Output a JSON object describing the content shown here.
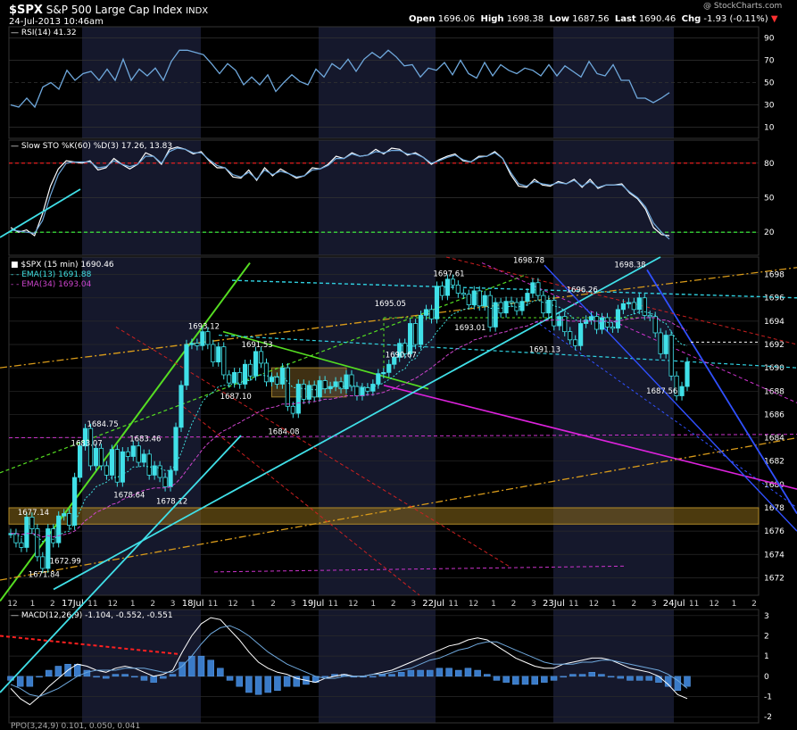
{
  "header": {
    "symbol": "$SPX",
    "name": "S&P 500 Large Cap Index",
    "exchange": "INDX",
    "timestamp": "24-Jul-2013 10:46am",
    "open_label": "Open",
    "open": "1696.06",
    "high_label": "High",
    "high": "1698.38",
    "low_label": "Low",
    "low": "1687.56",
    "last_label": "Last",
    "last": "1690.46",
    "chg_label": "Chg",
    "chg": "-1.93 (-0.11%)",
    "watermark": "@ StockCharts.com"
  },
  "colors": {
    "background": "#000000",
    "band": "#15182c",
    "up": "#40e0e8",
    "rsi_line": "#6fa8dc",
    "sto_line": "#ffffff",
    "red_dash": "#ff2020",
    "green_dash": "#40ff40",
    "ema13": "#40e0e0",
    "ema34": "#cc44cc",
    "macd_hist": "#3a7bc8"
  },
  "chart_data": [
    {
      "type": "line",
      "panel": "rsi",
      "title": "RSI(14) 41.32",
      "ylim": [
        0,
        100
      ],
      "yticks": [
        10,
        30,
        50,
        70,
        90
      ],
      "series": [
        {
          "name": "RSI(14)",
          "values": [
            30,
            28,
            36,
            28,
            46,
            50,
            44,
            61,
            52,
            58,
            60,
            52,
            62,
            52,
            71,
            52,
            62,
            56,
            63,
            52,
            69,
            79,
            79,
            77,
            75,
            67,
            58,
            67,
            61,
            48,
            55,
            48,
            57,
            42,
            50,
            57,
            51,
            48,
            62,
            55,
            67,
            62,
            71,
            60,
            71,
            77,
            72,
            79,
            73,
            65,
            66,
            55,
            63,
            61,
            68,
            57,
            70,
            58,
            54,
            68,
            56,
            66,
            61,
            58,
            63,
            61,
            56,
            66,
            56,
            65,
            60,
            55,
            69,
            58,
            56,
            66,
            52,
            52,
            36,
            36,
            32,
            36,
            41
          ]
        }
      ]
    },
    {
      "type": "line",
      "panel": "slow_sto",
      "title": "Slow STO %K(60) %D(3) 17.26, 13.83",
      "ylim": [
        0,
        100
      ],
      "yticks": [
        20,
        50,
        80
      ],
      "series": [
        {
          "name": "%K(60)",
          "values": [
            24,
            20,
            22,
            17,
            36,
            60,
            75,
            82,
            81,
            80,
            82,
            74,
            76,
            84,
            79,
            75,
            79,
            89,
            86,
            79,
            92,
            94,
            92,
            88,
            90,
            82,
            76,
            76,
            68,
            67,
            74,
            65,
            76,
            69,
            75,
            71,
            67,
            69,
            76,
            75,
            79,
            86,
            84,
            89,
            86,
            87,
            92,
            88,
            93,
            92,
            87,
            89,
            85,
            79,
            83,
            86,
            88,
            82,
            81,
            86,
            86,
            90,
            84,
            70,
            60,
            59,
            66,
            61,
            60,
            64,
            62,
            66,
            59,
            66,
            58,
            61,
            61,
            62,
            54,
            49,
            40,
            24,
            18,
            17
          ]
        },
        {
          "name": "%D(3)",
          "values": [
            22,
            21,
            20,
            19,
            30,
            52,
            70,
            80,
            81,
            81,
            81,
            76,
            77,
            82,
            79,
            77,
            79,
            86,
            86,
            80,
            90,
            93,
            92,
            89,
            89,
            83,
            78,
            76,
            70,
            68,
            72,
            66,
            74,
            70,
            73,
            71,
            68,
            69,
            74,
            75,
            78,
            84,
            84,
            88,
            86,
            87,
            90,
            89,
            91,
            91,
            88,
            88,
            85,
            80,
            82,
            85,
            87,
            83,
            81,
            85,
            86,
            89,
            84,
            72,
            62,
            60,
            64,
            62,
            61,
            63,
            62,
            65,
            60,
            64,
            59,
            61,
            61,
            61,
            55,
            50,
            42,
            28,
            20,
            14
          ]
        }
      ],
      "reference_lines": [
        80,
        20
      ]
    },
    {
      "type": "line",
      "panel": "price",
      "title": "$SPX (15 min) 1690.46",
      "legend": [
        "EMA(13) 1691.88",
        "EMA(34) 1693.04"
      ],
      "ylim": [
        1670.5,
        1699.5
      ],
      "yticks": [
        1672,
        1674,
        1676,
        1678,
        1680,
        1682,
        1684,
        1686,
        1688,
        1690,
        1692,
        1694,
        1696,
        1698
      ],
      "close": [
        1675.8,
        1675.0,
        1674.6,
        1677.2,
        1676.2,
        1673.8,
        1672.8,
        1676.2,
        1675.0,
        1677.3,
        1677.5,
        1676.5,
        1680.6,
        1683.3,
        1684.8,
        1681.6,
        1683.1,
        1681.6,
        1680.8,
        1683.0,
        1680.2,
        1682.8,
        1682.4,
        1683.3,
        1681.9,
        1682.6,
        1680.8,
        1681.6,
        1680.6,
        1679.8,
        1681.2,
        1684.9,
        1688.5,
        1692.0,
        1692.1,
        1691.9,
        1693.1,
        1692.0,
        1690.5,
        1691.8,
        1689.4,
        1688.7,
        1689.6,
        1688.6,
        1690.3,
        1689.3,
        1691.4,
        1690.4,
        1688.8,
        1689.2,
        1688.6,
        1690.0,
        1686.7,
        1686.1,
        1688.6,
        1687.3,
        1688.5,
        1687.5,
        1688.9,
        1688.2,
        1688.4,
        1688.8,
        1688.2,
        1689.4,
        1688.4,
        1687.6,
        1688.3,
        1688.0,
        1688.6,
        1689.5,
        1689.6,
        1690.3,
        1690.9,
        1692.1,
        1691.2,
        1693.8,
        1692.0,
        1694.5,
        1695.0,
        1694.2,
        1697.0,
        1696.2,
        1697.6,
        1697.1,
        1696.4,
        1696.3,
        1695.4,
        1696.6,
        1695.3,
        1696.2,
        1693.5,
        1695.6,
        1694.7,
        1695.7,
        1695.6,
        1694.9,
        1695.7,
        1696.4,
        1697.3,
        1696.2,
        1694.7,
        1695.8,
        1693.6,
        1694.4,
        1693.1,
        1692.4,
        1691.9,
        1693.8,
        1694.1,
        1694.4,
        1693.3,
        1694.3,
        1693.5,
        1693.4,
        1695.0,
        1695.5,
        1695.6,
        1695.0,
        1696.0,
        1694.5,
        1694.4,
        1693.0,
        1691.2,
        1692.8,
        1689.3,
        1687.6,
        1688.4,
        1690.5
      ],
      "ema13": [
        1675.8,
        1675.7,
        1675.5,
        1675.8,
        1675.8,
        1675.5,
        1675.1,
        1675.3,
        1675.3,
        1675.6,
        1675.9,
        1676.0,
        1676.7,
        1677.7,
        1678.8,
        1679.2,
        1679.8,
        1680.0,
        1680.2,
        1680.6,
        1680.6,
        1680.9,
        1681.1,
        1681.5,
        1681.5,
        1681.6,
        1681.5,
        1681.5,
        1681.4,
        1681.2,
        1681.2,
        1681.7,
        1682.7,
        1684.0,
        1685.2,
        1686.1,
        1687.1,
        1687.6,
        1687.9,
        1688.4,
        1688.5,
        1688.5,
        1688.7,
        1688.7,
        1688.9,
        1688.9,
        1689.3,
        1689.4,
        1689.3,
        1689.3,
        1689.2,
        1689.3,
        1688.8,
        1688.3,
        1688.3,
        1688.2,
        1688.2,
        1688.1,
        1688.2,
        1688.2,
        1688.3,
        1688.4,
        1688.3,
        1688.5,
        1688.5,
        1688.4,
        1688.4,
        1688.3,
        1688.4,
        1688.5,
        1688.7,
        1689.0,
        1689.3,
        1689.7,
        1689.9,
        1690.6,
        1690.8,
        1691.5,
        1692.0,
        1692.4,
        1693.1,
        1693.6,
        1694.2,
        1694.6,
        1694.8,
        1695.0,
        1695.1,
        1695.3,
        1695.3,
        1695.4,
        1695.1,
        1695.1,
        1695.1,
        1695.2,
        1695.3,
        1695.2,
        1695.3,
        1695.4,
        1695.7,
        1695.8,
        1695.6,
        1695.6,
        1695.3,
        1695.2,
        1694.9,
        1694.5,
        1694.1,
        1694.0,
        1694.0,
        1694.1,
        1694.0,
        1694.0,
        1693.9,
        1693.9,
        1694.1,
        1694.3,
        1694.5,
        1694.6,
        1694.8,
        1694.8,
        1694.7,
        1694.5,
        1694.0,
        1693.8,
        1693.1,
        1692.4,
        1692.0,
        1691.9
      ],
      "ema34": [
        1675.8,
        1675.8,
        1675.7,
        1675.8,
        1675.8,
        1675.7,
        1675.5,
        1675.6,
        1675.5,
        1675.6,
        1675.7,
        1675.8,
        1676.0,
        1676.4,
        1676.9,
        1677.2,
        1677.6,
        1677.8,
        1678.0,
        1678.3,
        1678.4,
        1678.7,
        1678.9,
        1679.1,
        1679.3,
        1679.5,
        1679.6,
        1679.7,
        1679.7,
        1679.7,
        1679.8,
        1680.1,
        1680.6,
        1681.2,
        1681.8,
        1682.4,
        1683.0,
        1683.5,
        1683.9,
        1684.3,
        1684.6,
        1684.8,
        1685.1,
        1685.3,
        1685.6,
        1685.8,
        1686.1,
        1686.3,
        1686.5,
        1686.6,
        1686.7,
        1686.9,
        1686.9,
        1686.9,
        1687.0,
        1687.0,
        1687.1,
        1687.1,
        1687.2,
        1687.3,
        1687.3,
        1687.4,
        1687.5,
        1687.6,
        1687.6,
        1687.6,
        1687.6,
        1687.7,
        1687.7,
        1687.8,
        1687.9,
        1688.1,
        1688.2,
        1688.5,
        1688.6,
        1688.9,
        1689.1,
        1689.4,
        1689.7,
        1690.0,
        1690.4,
        1690.7,
        1691.1,
        1691.4,
        1691.7,
        1691.9,
        1692.1,
        1692.4,
        1692.5,
        1692.7,
        1692.7,
        1692.9,
        1693.0,
        1693.1,
        1693.3,
        1693.4,
        1693.5,
        1693.6,
        1693.8,
        1694.0,
        1694.0,
        1694.1,
        1694.1,
        1694.1,
        1694.1,
        1694.0,
        1694.0,
        1694.0,
        1694.0,
        1694.0,
        1694.0,
        1694.0,
        1694.0,
        1694.0,
        1694.0,
        1694.1,
        1694.2,
        1694.2,
        1694.3,
        1694.3,
        1694.3,
        1694.3,
        1694.1,
        1694.1,
        1693.9,
        1693.6,
        1693.4,
        1693.2
      ],
      "annotations": [
        {
          "text": "1677.14",
          "i": 4,
          "y": 1677.14
        },
        {
          "text": "1671.84",
          "i": 6,
          "y": 1671.84
        },
        {
          "text": "1672.99",
          "i": 10,
          "y": 1672.99
        },
        {
          "text": "1683.07",
          "i": 14,
          "y": 1683.07
        },
        {
          "text": "1684.75",
          "i": 17,
          "y": 1684.75
        },
        {
          "text": "1683.46",
          "i": 25,
          "y": 1683.46
        },
        {
          "text": "1678.64",
          "i": 22,
          "y": 1678.64
        },
        {
          "text": "1678.12",
          "i": 30,
          "y": 1678.12
        },
        {
          "text": "1693.12",
          "i": 36,
          "y": 1693.12
        },
        {
          "text": "1691.53",
          "i": 46,
          "y": 1691.53
        },
        {
          "text": "1687.10",
          "i": 42,
          "y": 1687.1
        },
        {
          "text": "1684.08",
          "i": 51,
          "y": 1684.08
        },
        {
          "text": "1695.05",
          "i": 71,
          "y": 1695.05
        },
        {
          "text": "1690.67",
          "i": 73,
          "y": 1690.67
        },
        {
          "text": "1697.61",
          "i": 82,
          "y": 1697.61
        },
        {
          "text": "1693.01",
          "i": 86,
          "y": 1693.01
        },
        {
          "text": "1698.78",
          "i": 97,
          "y": 1698.78
        },
        {
          "text": "1691.13",
          "i": 100,
          "y": 1691.13
        },
        {
          "text": "1696.26",
          "i": 107,
          "y": 1696.26
        },
        {
          "text": "1698.38",
          "i": 116,
          "y": 1698.38
        },
        {
          "text": "1687.56",
          "i": 122,
          "y": 1687.56
        }
      ]
    },
    {
      "type": "bar",
      "panel": "macd",
      "title": "MACD(12,26,9) -1.104, -0.552, -0.551",
      "ylim": [
        -2.3,
        3.3
      ],
      "yticks": [
        -2,
        -1,
        0,
        1,
        2,
        3
      ],
      "series": [
        {
          "name": "MACD(12,26,9)",
          "values": [
            -0.6,
            -1.1,
            -1.4,
            -1.0,
            -0.5,
            -0.1,
            0.3,
            0.6,
            0.5,
            0.3,
            0.2,
            0.4,
            0.5,
            0.4,
            0.2,
            0.0,
            0.1,
            0.3,
            1.2,
            2.0,
            2.6,
            2.9,
            2.8,
            2.3,
            1.8,
            1.2,
            0.7,
            0.4,
            0.2,
            0.1,
            -0.1,
            -0.2,
            -0.3,
            -0.1,
            0.0,
            0.1,
            0.0,
            0.0,
            0.1,
            0.2,
            0.3,
            0.5,
            0.7,
            0.9,
            1.1,
            1.3,
            1.5,
            1.6,
            1.8,
            1.9,
            1.8,
            1.5,
            1.2,
            0.9,
            0.7,
            0.5,
            0.4,
            0.4,
            0.6,
            0.7,
            0.8,
            0.9,
            0.9,
            0.8,
            0.6,
            0.4,
            0.3,
            0.2,
            0.0,
            -0.4,
            -0.9,
            -1.1
          ]
        },
        {
          "name": "Signal",
          "values": [
            -0.4,
            -0.6,
            -0.9,
            -1.0,
            -0.8,
            -0.6,
            -0.3,
            0.0,
            0.2,
            0.3,
            0.3,
            0.3,
            0.4,
            0.4,
            0.4,
            0.3,
            0.2,
            0.2,
            0.5,
            1.0,
            1.6,
            2.1,
            2.4,
            2.5,
            2.3,
            2.0,
            1.6,
            1.2,
            0.9,
            0.6,
            0.4,
            0.2,
            0.0,
            -0.1,
            -0.1,
            0.0,
            0.0,
            0.0,
            0.1,
            0.1,
            0.2,
            0.3,
            0.4,
            0.6,
            0.8,
            0.9,
            1.1,
            1.3,
            1.4,
            1.6,
            1.7,
            1.7,
            1.5,
            1.3,
            1.1,
            0.9,
            0.7,
            0.6,
            0.6,
            0.6,
            0.7,
            0.7,
            0.8,
            0.8,
            0.7,
            0.6,
            0.5,
            0.4,
            0.3,
            0.1,
            -0.2,
            -0.6
          ]
        },
        {
          "name": "Histogram",
          "values": [
            -0.2,
            -0.5,
            -0.5,
            0.0,
            0.3,
            0.5,
            0.6,
            0.6,
            0.3,
            0.0,
            -0.1,
            0.1,
            0.1,
            0.0,
            -0.2,
            -0.3,
            -0.1,
            0.1,
            0.7,
            1.0,
            1.0,
            0.8,
            0.4,
            -0.2,
            -0.5,
            -0.8,
            -0.9,
            -0.8,
            -0.7,
            -0.5,
            -0.5,
            -0.4,
            -0.3,
            0.0,
            0.1,
            0.1,
            0.0,
            0.0,
            0.0,
            0.1,
            0.1,
            0.2,
            0.3,
            0.3,
            0.3,
            0.4,
            0.4,
            0.3,
            0.4,
            0.3,
            0.1,
            -0.2,
            -0.3,
            -0.4,
            -0.4,
            -0.4,
            -0.3,
            -0.2,
            0.0,
            0.1,
            0.1,
            0.2,
            0.1,
            0.0,
            -0.1,
            -0.2,
            -0.2,
            -0.2,
            -0.3,
            -0.5,
            -0.7,
            -0.5
          ]
        }
      ]
    }
  ],
  "x_axis": {
    "labels": [
      "12",
      "1",
      "2",
      "17Jul",
      "11",
      "12",
      "1",
      "2",
      "3",
      "18Jul",
      "11",
      "12",
      "1",
      "2",
      "3",
      "19Jul",
      "11",
      "12",
      "1",
      "2",
      "3",
      "22Jul",
      "11",
      "12",
      "1",
      "2",
      "3",
      "23Jul",
      "11",
      "12",
      "1",
      "2",
      "3",
      "24Jul",
      "11",
      "12",
      "1",
      "2"
    ],
    "day_labels": [
      "17Jul",
      "18Jul",
      "19Jul",
      "22Jul",
      "23Jul",
      "24Jul"
    ]
  },
  "bottom_panel_title": "PPO(3,24,9) 0.101, 0.050, 0.041"
}
